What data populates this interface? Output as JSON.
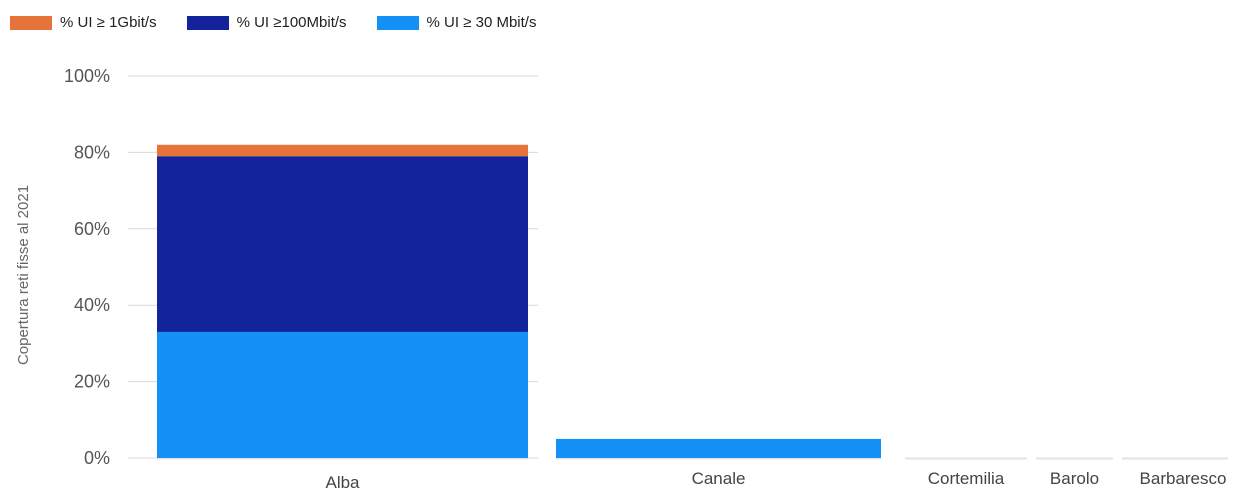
{
  "chart_data": {
    "type": "bar",
    "stacked": true,
    "categories": [
      "Alba",
      "Canale",
      "Cortemilia",
      "Barolo",
      "Barbaresco"
    ],
    "series": [
      {
        "name": "% UI ≥ 30 Mbit/s",
        "color": "#1490f7",
        "values": [
          33,
          5,
          0,
          0,
          0
        ]
      },
      {
        "name": "% UI ≥100Mbit/s",
        "color": "#13239b",
        "values": [
          46,
          0,
          0,
          0,
          0
        ]
      },
      {
        "name": "% UI ≥ 1Gbit/s",
        "color": "#e5733a",
        "values": [
          3,
          0,
          0,
          0,
          0
        ]
      }
    ],
    "legend_order": [
      "% UI ≥ 1Gbit/s",
      "% UI ≥100Mbit/s",
      "% UI ≥ 30 Mbit/s"
    ],
    "ylabel": "Copertura reti fisse al 2021",
    "xlabel": "",
    "ylim": [
      0,
      100
    ],
    "yticks": [
      "0%",
      "20%",
      "40%",
      "60%",
      "80%",
      "100%"
    ],
    "grid": true,
    "legend_position": "top-left"
  }
}
